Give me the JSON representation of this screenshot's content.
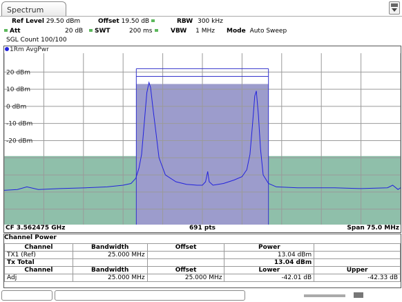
{
  "tab": {
    "label": "Spectrum"
  },
  "params": {
    "ref_level_label": "Ref Level",
    "ref_level_value": "29.50 dBm",
    "offset_label": "Offset",
    "offset_value": "19.50 dB",
    "rbw_label": "RBW",
    "rbw_value": "300 kHz",
    "att_label": "Att",
    "att_value": "20 dB",
    "swt_label": "SWT",
    "swt_value": "200 ms",
    "vbw_label": "VBW",
    "vbw_value": "1 MHz",
    "mode_label": "Mode",
    "mode_value": "Auto Sweep",
    "sgl_count": "SGL Count 100/100"
  },
  "trace": {
    "label": "1Rm AvgPwr",
    "color": "#2222dd"
  },
  "chart_data": {
    "type": "line",
    "y_tick_labels": [
      "20 dBm",
      "10 dBm",
      "0 dBm",
      "-10 dBm",
      "-20 dBm"
    ],
    "y_ticks": [
      20,
      10,
      0,
      -10,
      -20
    ],
    "ylim": [
      -69,
      31
    ],
    "x_units": "MHz relative to CF",
    "xlim": [
      -37.5,
      37.5
    ],
    "tx_channel": {
      "x_start": -12.5,
      "x_end": 12.5,
      "level": 13.04,
      "color": "#9c9ccc"
    },
    "adj_channels": [
      {
        "x_start": -37.5,
        "x_end": -12.5,
        "level": -29,
        "color": "#8fbfaa"
      },
      {
        "x_start": 12.5,
        "x_end": 37.5,
        "level": -29,
        "color": "#8fbfaa"
      }
    ],
    "reference_lines": [
      {
        "x_start": -12.5,
        "x_end": 12.5,
        "level": 17.5
      },
      {
        "x_start": -12.5,
        "x_end": 12.5,
        "level": 22
      }
    ],
    "series": [
      {
        "values": [
          [
            -37.5,
            -49
          ],
          [
            -35,
            -48.5
          ],
          [
            -33.2,
            -47
          ],
          [
            -31,
            -48.5
          ],
          [
            -27,
            -48
          ],
          [
            -22,
            -47.5
          ],
          [
            -18,
            -47
          ],
          [
            -15,
            -46
          ],
          [
            -13.5,
            -45
          ],
          [
            -12.6,
            -42
          ],
          [
            -12,
            -36
          ],
          [
            -11.5,
            -28
          ],
          [
            -11,
            -10
          ],
          [
            -10.5,
            8
          ],
          [
            -10.1,
            14
          ],
          [
            -9.8,
            11
          ],
          [
            -9.4,
            0
          ],
          [
            -8.8,
            -15
          ],
          [
            -8.2,
            -30
          ],
          [
            -7,
            -40
          ],
          [
            -5,
            -44
          ],
          [
            -3,
            -45.5
          ],
          [
            -1,
            -46
          ],
          [
            0,
            -46
          ],
          [
            0.6,
            -44
          ],
          [
            1.0,
            -38
          ],
          [
            1.3,
            -44
          ],
          [
            2,
            -46
          ],
          [
            4,
            -45
          ],
          [
            6,
            -43
          ],
          [
            7.5,
            -41
          ],
          [
            8.4,
            -37
          ],
          [
            9.0,
            -28
          ],
          [
            9.5,
            -10
          ],
          [
            9.9,
            6
          ],
          [
            10.2,
            9
          ],
          [
            10.6,
            -5
          ],
          [
            11,
            -25
          ],
          [
            11.5,
            -40
          ],
          [
            12.5,
            -45
          ],
          [
            14,
            -47
          ],
          [
            18,
            -47.5
          ],
          [
            25,
            -47.5
          ],
          [
            30,
            -48
          ],
          [
            35,
            -47.5
          ],
          [
            36,
            -46
          ],
          [
            37,
            -48.5
          ],
          [
            37.5,
            -47.5
          ]
        ]
      }
    ],
    "vertical_grid": 10
  },
  "footer": {
    "cf": "CF 3.562475 GHz",
    "pts": "691 pts",
    "span": "Span 75.0 MHz"
  },
  "table": {
    "title": "Channel Power",
    "header1": [
      "Channel",
      "Bandwidth",
      "Offset",
      "Power"
    ],
    "row_tx": [
      "TX1 (Ref)",
      "25.000 MHz",
      "",
      "13.04 dBm"
    ],
    "tx_total_label": "Tx Total",
    "tx_total_value": "13.04 dBm",
    "header2": [
      "Channel",
      "Bandwidth",
      "Offset",
      "Lower",
      "Upper"
    ],
    "row_adj": [
      "Adj",
      "25.000 MHz",
      "25.000 MHz",
      "-42.01 dB",
      "-42.33 dB"
    ]
  }
}
